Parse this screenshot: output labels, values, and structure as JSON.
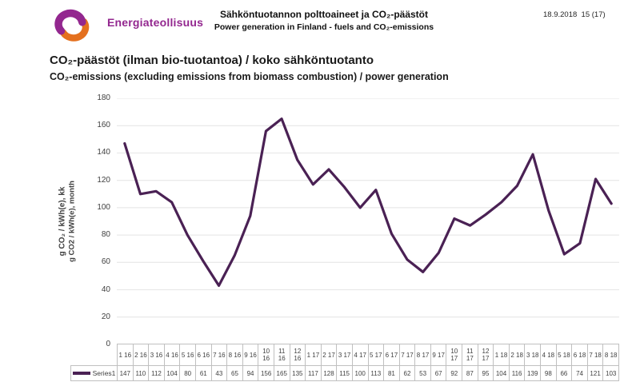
{
  "header": {
    "brand": "Energiateollisuus",
    "title": "Sähköntuotannon polttoaineet ja CO₂-päästöt",
    "subtitle": "Power generation in Finland - fuels and CO₂-emissions",
    "date_page": "18.9.2018  15 (17)"
  },
  "chart_data": {
    "type": "line",
    "title": "CO₂-päästöt (ilman bio-tuotantoa) / koko sähköntuotanto",
    "title_en": "CO₂-emissions (excluding emissions from biomass combustion) / power generation",
    "ylabel_line1": "g CO₂ / kWh(e), kk",
    "ylabel_line2": "g CO2 / kWh(e), month",
    "ylim": [
      0,
      180
    ],
    "ytick_step": 20,
    "grid": "horizontal",
    "legend_position": "bottom-data-table",
    "categories": [
      "1 16",
      "2 16",
      "3 16",
      "4 16",
      "5 16",
      "6 16",
      "7 16",
      "8 16",
      "9 16",
      "10 16",
      "11 16",
      "12 16",
      "1 17",
      "2 17",
      "3 17",
      "4 17",
      "5 17",
      "6 17",
      "7 17",
      "8 17",
      "9 17",
      "10 17",
      "11 17",
      "12 17",
      "1 18",
      "2 18",
      "3 18",
      "4 18",
      "5 18",
      "6 18",
      "7 18",
      "8 18"
    ],
    "series": [
      {
        "name": "Series1",
        "color": "#4A2154",
        "values": [
          147,
          110,
          112,
          104,
          80,
          61,
          43,
          65,
          94,
          156,
          165,
          135,
          117,
          128,
          115,
          100,
          113,
          81,
          62,
          53,
          67,
          92,
          87,
          95,
          104,
          116,
          139,
          98,
          66,
          74,
          121,
          103
        ]
      }
    ]
  },
  "colors": {
    "brand_purple": "#93278F",
    "brand_orange": "#E4701E",
    "line_purple": "#4A2154",
    "gridline": "#E4E4E4",
    "table_border": "#C0C0C0"
  }
}
